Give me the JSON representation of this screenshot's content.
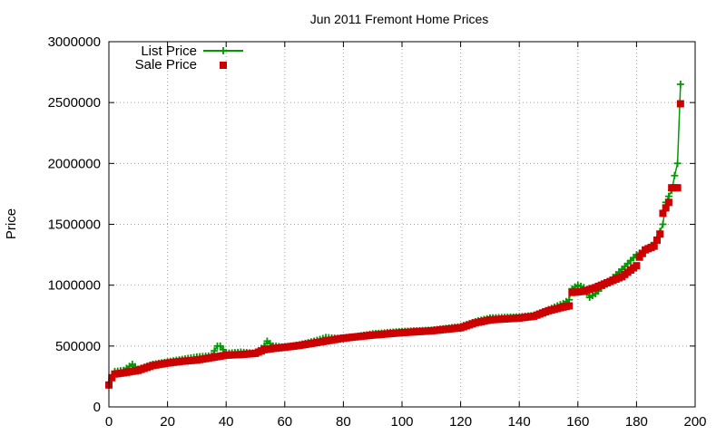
{
  "chart_data": {
    "type": "line",
    "title": "Jun 2011 Fremont Home Prices",
    "xlabel": "",
    "ylabel": "Price",
    "xlim": [
      0,
      200
    ],
    "ylim": [
      0,
      3000000
    ],
    "xticks": [
      "0",
      "20",
      "40",
      "60",
      "80",
      "100",
      "120",
      "140",
      "160",
      "180",
      "200"
    ],
    "yticks": [
      "0",
      "500000",
      "1000000",
      "1500000",
      "2000000",
      "2500000",
      "3000000"
    ],
    "grid": true,
    "legend_position": "top-left",
    "colors": {
      "list": "#009900",
      "sale": "#cc0000"
    },
    "series": [
      {
        "name": "List Price",
        "style": "line-plus",
        "anchors": [
          [
            0,
            190000
          ],
          [
            1,
            230000
          ],
          [
            2,
            290000
          ],
          [
            5,
            300000
          ],
          [
            8,
            350000
          ],
          [
            10,
            310000
          ],
          [
            15,
            350000
          ],
          [
            20,
            370000
          ],
          [
            25,
            390000
          ],
          [
            30,
            410000
          ],
          [
            35,
            420000
          ],
          [
            37,
            500000
          ],
          [
            38,
            500000
          ],
          [
            40,
            440000
          ],
          [
            45,
            450000
          ],
          [
            50,
            440000
          ],
          [
            53,
            500000
          ],
          [
            54,
            540000
          ],
          [
            56,
            500000
          ],
          [
            60,
            490000
          ],
          [
            65,
            510000
          ],
          [
            70,
            540000
          ],
          [
            74,
            570000
          ],
          [
            80,
            560000
          ],
          [
            90,
            600000
          ],
          [
            100,
            620000
          ],
          [
            110,
            630000
          ],
          [
            120,
            660000
          ],
          [
            125,
            700000
          ],
          [
            130,
            730000
          ],
          [
            140,
            740000
          ],
          [
            145,
            750000
          ],
          [
            150,
            800000
          ],
          [
            155,
            850000
          ],
          [
            157,
            880000
          ],
          [
            158,
            970000
          ],
          [
            160,
            1000000
          ],
          [
            162,
            980000
          ],
          [
            164,
            900000
          ],
          [
            166,
            930000
          ],
          [
            170,
            1020000
          ],
          [
            175,
            1130000
          ],
          [
            180,
            1250000
          ],
          [
            183,
            1290000
          ],
          [
            185,
            1320000
          ],
          [
            187,
            1380000
          ],
          [
            189,
            1500000
          ],
          [
            190,
            1680000
          ],
          [
            192,
            1780000
          ],
          [
            193,
            1900000
          ],
          [
            194,
            2000000
          ],
          [
            195,
            2650000
          ]
        ]
      },
      {
        "name": "Sale Price",
        "style": "square",
        "anchors": [
          [
            0,
            180000
          ],
          [
            1,
            240000
          ],
          [
            2,
            270000
          ],
          [
            5,
            280000
          ],
          [
            10,
            300000
          ],
          [
            15,
            340000
          ],
          [
            20,
            360000
          ],
          [
            25,
            375000
          ],
          [
            30,
            385000
          ],
          [
            35,
            405000
          ],
          [
            40,
            425000
          ],
          [
            45,
            430000
          ],
          [
            50,
            440000
          ],
          [
            53,
            470000
          ],
          [
            56,
            480000
          ],
          [
            60,
            490000
          ],
          [
            65,
            505000
          ],
          [
            70,
            525000
          ],
          [
            75,
            545000
          ],
          [
            80,
            565000
          ],
          [
            90,
            590000
          ],
          [
            100,
            610000
          ],
          [
            110,
            625000
          ],
          [
            120,
            650000
          ],
          [
            125,
            690000
          ],
          [
            130,
            715000
          ],
          [
            140,
            730000
          ],
          [
            145,
            745000
          ],
          [
            150,
            790000
          ],
          [
            155,
            820000
          ],
          [
            157,
            830000
          ],
          [
            158,
            940000
          ],
          [
            162,
            950000
          ],
          [
            166,
            980000
          ],
          [
            170,
            1020000
          ],
          [
            175,
            1070000
          ],
          [
            180,
            1160000
          ],
          [
            181,
            1230000
          ],
          [
            183,
            1290000
          ],
          [
            186,
            1320000
          ],
          [
            188,
            1420000
          ],
          [
            189,
            1590000
          ],
          [
            191,
            1680000
          ],
          [
            192,
            1800000
          ],
          [
            194,
            1800000
          ],
          [
            195,
            2490000
          ]
        ]
      }
    ]
  }
}
